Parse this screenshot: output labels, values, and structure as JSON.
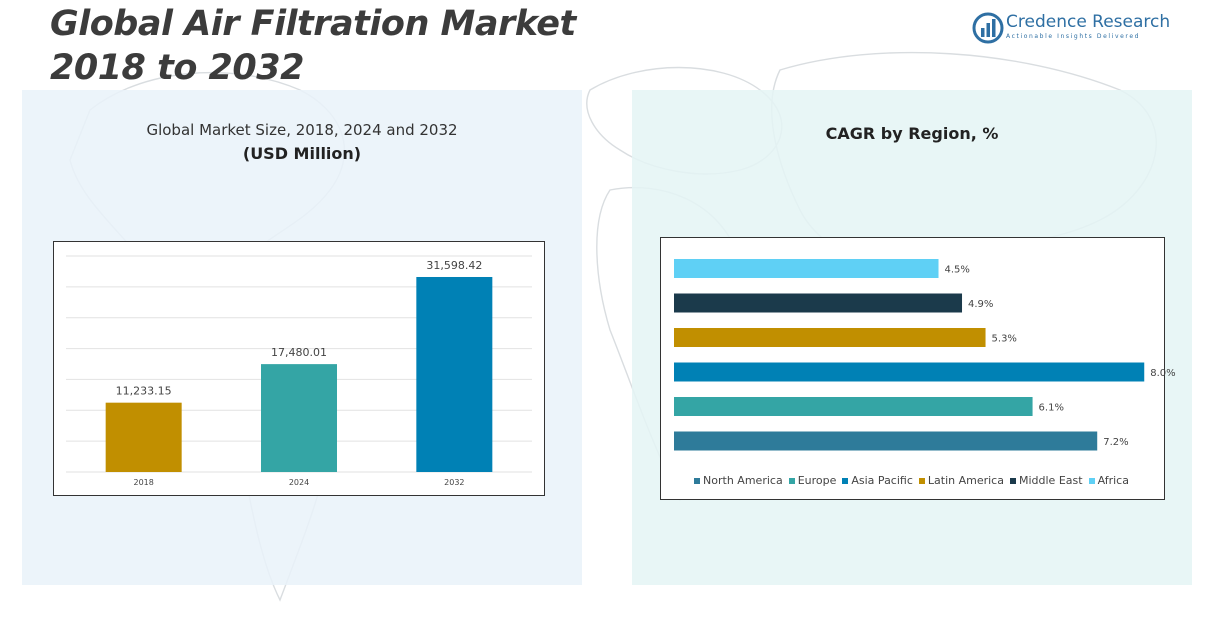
{
  "header": {
    "title_line1": "Global Air Filtration Market",
    "title_line2": "2018 to 2032"
  },
  "logo": {
    "name": "Credence Research",
    "tagline": "Actionable Insights Delivered",
    "icon": "bar-chart-logo-icon",
    "color": "#2e6fa3"
  },
  "left_panel": {
    "title": "Global Market Size, 2018, 2024 and 2032",
    "unit": "(USD Million)"
  },
  "right_panel": {
    "title": "CAGR by Region, %"
  },
  "chart_data": [
    {
      "type": "bar",
      "title": "Global Market Size, 2018, 2024 and 2032",
      "ylabel": "(USD Million)",
      "categories": [
        "2018",
        "2024",
        "2032"
      ],
      "values": [
        11233.15,
        17480.01,
        31598.42
      ],
      "labels": [
        "11,233.15",
        "17,480.01",
        "31,598.42"
      ],
      "colors": [
        "#c18f00",
        "#34a5a5",
        "#0081b5"
      ],
      "ylim": [
        0,
        35000
      ],
      "grid": true
    },
    {
      "type": "bar",
      "orientation": "horizontal",
      "title": "CAGR by Region, %",
      "categories": [
        "Africa",
        "Middle East",
        "Latin America",
        "Asia Pacific",
        "Europe",
        "North America"
      ],
      "values": [
        4.5,
        4.9,
        5.3,
        8.0,
        6.1,
        7.2
      ],
      "labels": [
        "4.5%",
        "4.9%",
        "5.3%",
        "8.0%",
        "6.1%",
        "7.2%"
      ],
      "colors": [
        "#5fd0f5",
        "#1b3a4b",
        "#c18f00",
        "#0081b5",
        "#34a5a5",
        "#2e7b9a"
      ],
      "xlim": [
        0,
        8.2
      ],
      "legend": {
        "placement": "bottom",
        "entries": [
          "North America",
          "Europe",
          "Asia Pacific",
          "Latin America",
          "Middle East",
          "Africa"
        ]
      }
    }
  ]
}
